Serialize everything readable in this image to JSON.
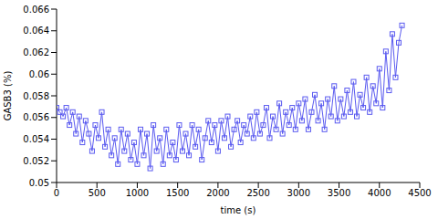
{
  "chart_data": {
    "type": "line",
    "x_label": "time (s)",
    "y_label": "GASB3 (%)",
    "x": [
      0,
      40,
      80,
      120,
      160,
      200,
      240,
      280,
      320,
      360,
      400,
      440,
      480,
      520,
      560,
      600,
      640,
      680,
      720,
      760,
      800,
      840,
      880,
      920,
      960,
      1000,
      1040,
      1080,
      1120,
      1160,
      1200,
      1240,
      1280,
      1320,
      1360,
      1400,
      1440,
      1480,
      1520,
      1560,
      1600,
      1640,
      1680,
      1720,
      1760,
      1800,
      1840,
      1880,
      1920,
      1960,
      2000,
      2040,
      2080,
      2120,
      2160,
      2200,
      2240,
      2280,
      2320,
      2360,
      2400,
      2440,
      2480,
      2520,
      2560,
      2600,
      2640,
      2680,
      2720,
      2760,
      2800,
      2840,
      2880,
      2920,
      2960,
      3000,
      3040,
      3080,
      3120,
      3160,
      3200,
      3240,
      3280,
      3320,
      3360,
      3400,
      3440,
      3480,
      3520,
      3560,
      3600,
      3640,
      3680,
      3720,
      3760,
      3800,
      3840,
      3880,
      3920,
      3960,
      4000,
      4040,
      4080,
      4120,
      4160,
      4200,
      4240,
      4280
    ],
    "values": [
      0.0569,
      0.0565,
      0.0561,
      0.0569,
      0.0553,
      0.0565,
      0.0545,
      0.0561,
      0.0537,
      0.0557,
      0.0545,
      0.0529,
      0.0553,
      0.0541,
      0.0565,
      0.0533,
      0.0549,
      0.0525,
      0.0541,
      0.0517,
      0.0549,
      0.0529,
      0.0545,
      0.0521,
      0.0537,
      0.0517,
      0.0549,
      0.0525,
      0.0545,
      0.0513,
      0.0553,
      0.0529,
      0.0541,
      0.0517,
      0.0549,
      0.0525,
      0.0537,
      0.0521,
      0.0553,
      0.0529,
      0.0545,
      0.0525,
      0.0553,
      0.0533,
      0.0549,
      0.0521,
      0.0541,
      0.0557,
      0.0537,
      0.0553,
      0.0529,
      0.0557,
      0.0541,
      0.0561,
      0.0533,
      0.0549,
      0.0557,
      0.0537,
      0.0553,
      0.0545,
      0.0561,
      0.0541,
      0.0565,
      0.0545,
      0.0553,
      0.0569,
      0.0541,
      0.0561,
      0.0549,
      0.0573,
      0.0545,
      0.0565,
      0.0553,
      0.0569,
      0.0549,
      0.0573,
      0.0557,
      0.0577,
      0.0549,
      0.0565,
      0.0581,
      0.0557,
      0.0573,
      0.0549,
      0.0577,
      0.0561,
      0.0589,
      0.0557,
      0.0577,
      0.0561,
      0.0585,
      0.0565,
      0.0593,
      0.0561,
      0.0581,
      0.0569,
      0.0597,
      0.0565,
      0.0589,
      0.0573,
      0.0605,
      0.0569,
      0.0621,
      0.0585,
      0.0637,
      0.0597,
      0.0629,
      0.0645
    ],
    "color": "#5a5af0",
    "marker": "square",
    "line_style": "solid",
    "xlim": [
      0,
      4500
    ],
    "xticks": [
      0,
      500,
      1000,
      1500,
      2000,
      2500,
      3000,
      3500,
      4000,
      4500
    ],
    "ylim": [
      0.05,
      0.066
    ],
    "yticks": [
      0.05,
      0.052,
      0.054,
      0.056,
      0.058,
      0.06,
      0.062,
      0.064,
      0.066
    ],
    "grid": false
  }
}
